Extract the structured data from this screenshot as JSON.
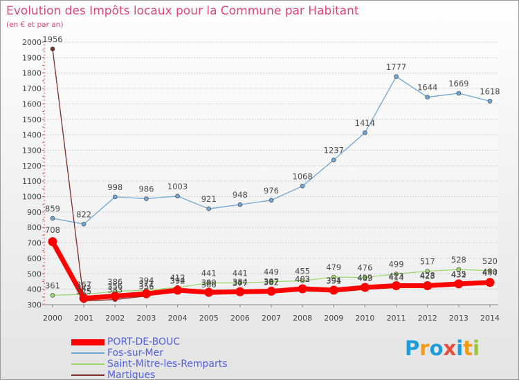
{
  "chart_data": {
    "type": "line",
    "title": "Evolution des Impôts locaux pour la Commune par Habitant",
    "subtitle": "(en € et par an)",
    "xlabel": "",
    "ylabel": "",
    "ylim": [
      300,
      2000
    ],
    "yticks": [
      300,
      400,
      500,
      600,
      700,
      800,
      900,
      1000,
      1100,
      1200,
      1300,
      1400,
      1500,
      1600,
      1700,
      1800,
      1900,
      2000
    ],
    "categories": [
      "2000",
      "2001",
      "2002",
      "2003",
      "2004",
      "2005",
      "2006",
      "2007",
      "2008",
      "2009",
      "2010",
      "2011",
      "2012",
      "2013",
      "2014"
    ],
    "legend_position": "bottom-left",
    "series": [
      {
        "name": "PORT-DE-BOUC",
        "color": "#ff0000",
        "values": [
          708,
          342,
          356,
          371,
          394,
          380,
          384,
          387,
          403,
          394,
          412,
          423,
          423,
          435,
          444
        ]
      },
      {
        "name": "Fos-sur-Mer",
        "color": "#6fa6d4",
        "values": [
          859,
          822,
          998,
          986,
          1003,
          921,
          948,
          976,
          1068,
          1237,
          1414,
          1777,
          1644,
          1669,
          1618
        ]
      },
      {
        "name": "Saint-Mitre-les-Remparts",
        "color": "#9cd86e",
        "values": [
          361,
          367,
          386,
          394,
          412,
          441,
          441,
          449,
          455,
          479,
          476,
          499,
          517,
          528,
          520
        ]
      },
      {
        "name": "Martigues",
        "color": "#7a2d2d",
        "values": [
          1956,
          325,
          333,
          356,
          392,
          366,
          377,
          382,
          402,
          391,
          409,
          414,
          428,
          432,
          450
        ]
      }
    ]
  },
  "logo": {
    "text": "Proxiti",
    "colors": [
      "#1f9bd9",
      "#f39c12",
      "#1f9bd9",
      "#e74c3c",
      "#1f9bd9",
      "#f39c12",
      "#9bc53d"
    ]
  }
}
